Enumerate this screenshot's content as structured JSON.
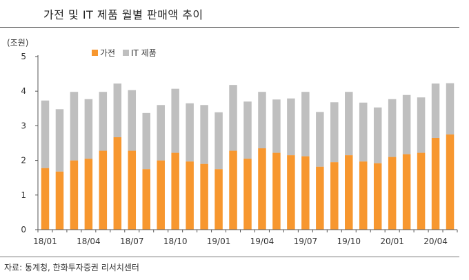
{
  "title": "가전 및 IT 제품 월별 판매액 추이",
  "unit_label": "(조원)",
  "source": "자료: 통계청, 한화투자증권 리서치센터",
  "colors": {
    "appliance": "#f7972f",
    "it": "#bfbfbf",
    "axis": "#555555",
    "grid": "#cccccc"
  },
  "chart_data": {
    "type": "bar",
    "stacked": true,
    "xlabel": "",
    "ylabel": "(조원)",
    "ylim": [
      0,
      5
    ],
    "yticks": [
      0,
      1,
      2,
      3,
      4,
      5
    ],
    "legend_position": "top-left",
    "categories": [
      "18/01",
      "18/02",
      "18/03",
      "18/04",
      "18/05",
      "18/06",
      "18/07",
      "18/08",
      "18/09",
      "18/10",
      "18/11",
      "18/12",
      "19/01",
      "19/02",
      "19/03",
      "19/04",
      "19/05",
      "19/06",
      "19/07",
      "19/08",
      "19/09",
      "19/10",
      "19/11",
      "19/12",
      "20/01",
      "20/02",
      "20/03",
      "20/04",
      "20/05"
    ],
    "xtick_labels": [
      "18/01",
      "18/04",
      "18/07",
      "18/10",
      "19/01",
      "19/04",
      "19/07",
      "19/10",
      "20/01",
      "20/04"
    ],
    "series": [
      {
        "name": "가전",
        "values": [
          1.78,
          1.68,
          2.0,
          2.05,
          2.28,
          2.67,
          2.28,
          1.75,
          2.0,
          2.22,
          1.97,
          1.9,
          1.75,
          2.28,
          2.05,
          2.35,
          2.22,
          2.15,
          2.12,
          1.82,
          1.95,
          2.15,
          1.97,
          1.92,
          2.1,
          2.18,
          2.22,
          2.65,
          2.75
        ]
      },
      {
        "name": "IT 제품",
        "values": [
          1.95,
          1.8,
          1.98,
          1.72,
          1.7,
          1.55,
          1.75,
          1.62,
          1.6,
          1.85,
          1.68,
          1.7,
          1.64,
          1.9,
          1.65,
          1.63,
          1.54,
          1.64,
          1.86,
          1.58,
          1.73,
          1.83,
          1.7,
          1.61,
          1.67,
          1.71,
          1.6,
          1.57,
          1.48
        ]
      }
    ]
  }
}
